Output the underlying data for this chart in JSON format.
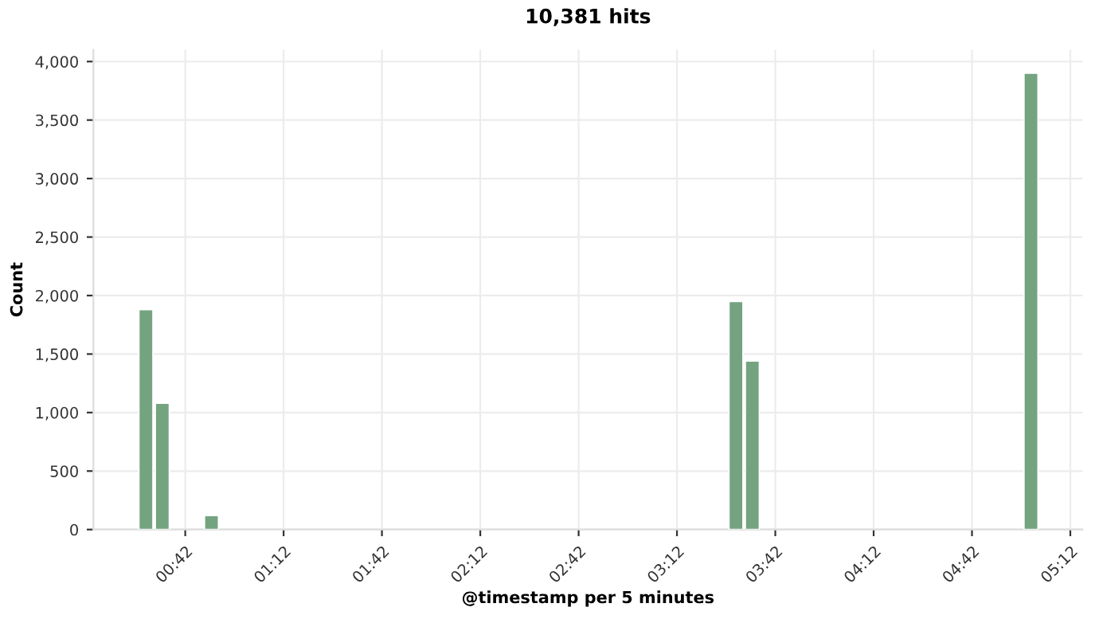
{
  "chart_data": {
    "type": "bar",
    "title": "10,381 hits",
    "xlabel": "@timestamp per 5 minutes",
    "ylabel": "Count",
    "x": [
      0.5,
      0.5833,
      0.8333,
      3.5,
      3.5833,
      5.0
    ],
    "values": [
      1880,
      1080,
      120,
      1950,
      1440,
      3900
    ],
    "color": "#74a380",
    "xlim": [
      0.233,
      5.262
    ],
    "xticks": [
      {
        "value": 0.7,
        "label": "00:42"
      },
      {
        "value": 1.2,
        "label": "01:12"
      },
      {
        "value": 1.7,
        "label": "01:42"
      },
      {
        "value": 2.2,
        "label": "02:12"
      },
      {
        "value": 2.7,
        "label": "02:42"
      },
      {
        "value": 3.2,
        "label": "03:12"
      },
      {
        "value": 3.7,
        "label": "03:42"
      },
      {
        "value": 4.2,
        "label": "04:12"
      },
      {
        "value": 4.7,
        "label": "04:42"
      },
      {
        "value": 5.2,
        "label": "05:12"
      }
    ],
    "ylim": [
      0,
      4100
    ],
    "yticks": [
      0,
      {
        "value": 500,
        "label": "500"
      },
      {
        "value": 1000,
        "label": "1,000"
      },
      {
        "value": 1500,
        "label": "1,500"
      },
      {
        "value": 2000,
        "label": "2,000"
      },
      {
        "value": 2500,
        "label": "2,500"
      },
      {
        "value": 3000,
        "label": "3,000"
      },
      {
        "value": 3500,
        "label": "3,500"
      },
      {
        "value": 4000,
        "label": "4,000"
      }
    ],
    "grid": true,
    "legend": false
  }
}
